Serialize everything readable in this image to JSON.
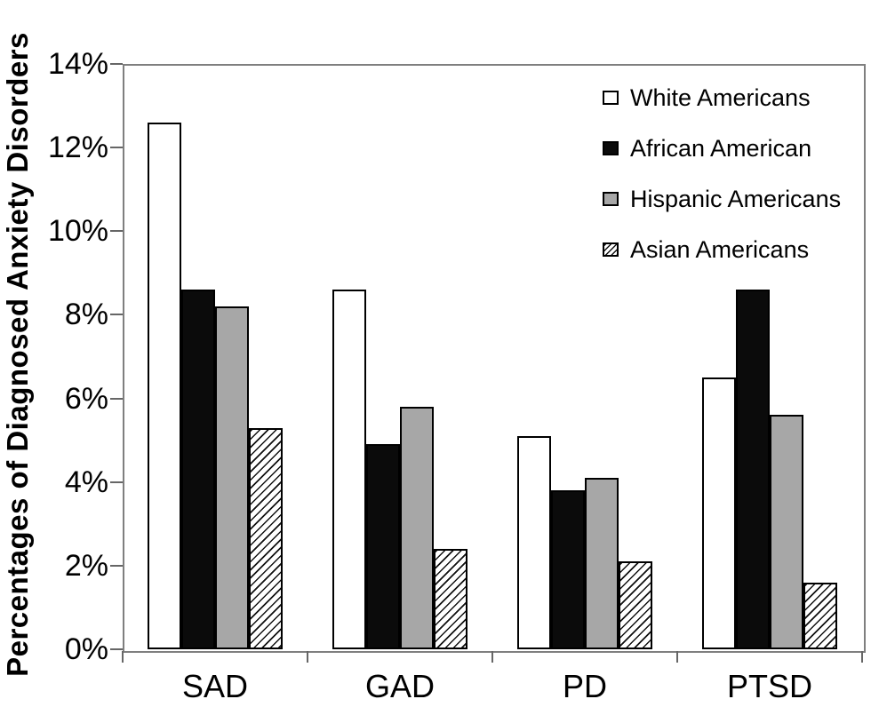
{
  "chart_data": {
    "type": "bar",
    "title": "",
    "xlabel": "",
    "ylabel": "Percentages of Diagnosed Anxiety Disorders",
    "categories": [
      "SAD",
      "GAD",
      "PD",
      "PTSD"
    ],
    "series": [
      {
        "name": "White Americans",
        "style": "white",
        "values": [
          12.6,
          8.6,
          5.1,
          6.5
        ]
      },
      {
        "name": "African American",
        "style": "black",
        "values": [
          8.6,
          4.9,
          3.8,
          8.6
        ]
      },
      {
        "name": "Hispanic Americans",
        "style": "gray",
        "values": [
          8.2,
          5.8,
          4.1,
          5.6
        ]
      },
      {
        "name": "Asian Americans",
        "style": "hatch",
        "values": [
          5.3,
          2.4,
          2.1,
          1.6
        ]
      }
    ],
    "ylim": [
      0,
      14
    ],
    "ytick_step": 2,
    "ytick_labels": [
      "0%",
      "2%",
      "4%",
      "6%",
      "8%",
      "10%",
      "12%",
      "14%"
    ],
    "grid": false,
    "legend_position": "top-right-inside",
    "colors": {
      "bar_border": "#000000",
      "gray_fill": "#a7a7a7",
      "axis": "#7f7f7f",
      "text": "#000000",
      "background": "#ffffff"
    }
  }
}
